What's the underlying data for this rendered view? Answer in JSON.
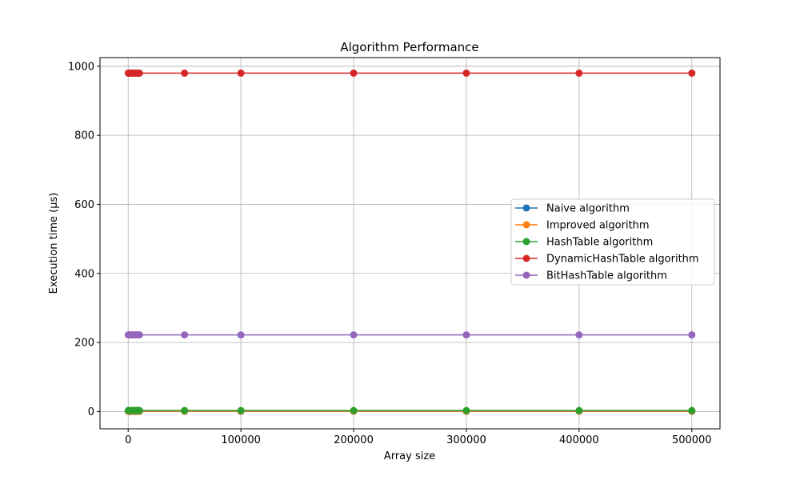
{
  "chart_data": {
    "type": "line",
    "title": "Algorithm Performance",
    "xlabel": "Array size",
    "ylabel": "Execution time (µs)",
    "xlim": [
      -25000,
      525000
    ],
    "ylim": [
      -50,
      1025
    ],
    "grid": true,
    "legend_position": "center-right",
    "x_ticks": [
      0,
      100000,
      200000,
      300000,
      400000,
      500000
    ],
    "y_ticks": [
      0,
      200,
      400,
      600,
      800,
      1000
    ],
    "x": [
      100,
      500,
      1000,
      2000,
      3000,
      4000,
      5000,
      6000,
      7000,
      8000,
      9000,
      10000,
      50000,
      100000,
      200000,
      300000,
      400000,
      500000
    ],
    "series": [
      {
        "name": "Naive algorithm",
        "color": "#1f77b4",
        "values": [
          0.5,
          0.5,
          0.5,
          0.5,
          0.5,
          0.5,
          0.5,
          0.5,
          0.5,
          0.5,
          0.5,
          0.5,
          0.5,
          0.5,
          0.5,
          0.5,
          0.5,
          0.5
        ]
      },
      {
        "name": "Improved algorithm",
        "color": "#ff7f0e",
        "values": [
          1,
          1,
          1,
          1,
          1,
          1,
          1,
          1,
          1,
          1,
          1,
          1,
          1,
          1,
          1,
          1,
          1,
          1
        ]
      },
      {
        "name": "HashTable algorithm",
        "color": "#2ca02c",
        "values": [
          3,
          3,
          3,
          3,
          3,
          3,
          3,
          3,
          3,
          3,
          3,
          3,
          3,
          3,
          3,
          3,
          3,
          3
        ]
      },
      {
        "name": "DynamicHashTable algorithm",
        "color": "#d62728",
        "values": [
          980,
          980,
          980,
          980,
          980,
          980,
          980,
          980,
          980,
          980,
          980,
          980,
          980,
          980,
          980,
          980,
          980,
          980
        ]
      },
      {
        "name": "BitHashTable algorithm",
        "color": "#9467bd",
        "values": [
          222,
          222,
          222,
          222,
          222,
          222,
          222,
          222,
          222,
          222,
          222,
          222,
          222,
          222,
          222,
          222,
          222,
          222
        ]
      }
    ]
  }
}
